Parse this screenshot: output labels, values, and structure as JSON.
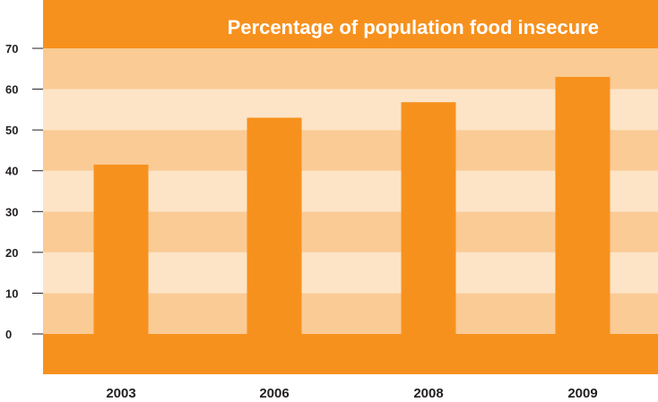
{
  "chart_data": {
    "type": "bar",
    "title": "Percentage of population food insecure",
    "categories": [
      "2003",
      "2006",
      "2008",
      "2009"
    ],
    "values": [
      41.5,
      53,
      56.8,
      63
    ],
    "ylim": [
      0,
      70
    ],
    "yticks": [
      "0",
      "10",
      "20",
      "30",
      "40",
      "50",
      "60",
      "70"
    ],
    "xlabel": "",
    "ylabel": "",
    "grid": true,
    "colors": {
      "bar": "#F7911E",
      "header": "#F7911E",
      "band_dark": "#FACB95",
      "band_light": "#FDE4C7",
      "title_text": "#FFFFFF",
      "axis_text": "#231F20"
    }
  }
}
